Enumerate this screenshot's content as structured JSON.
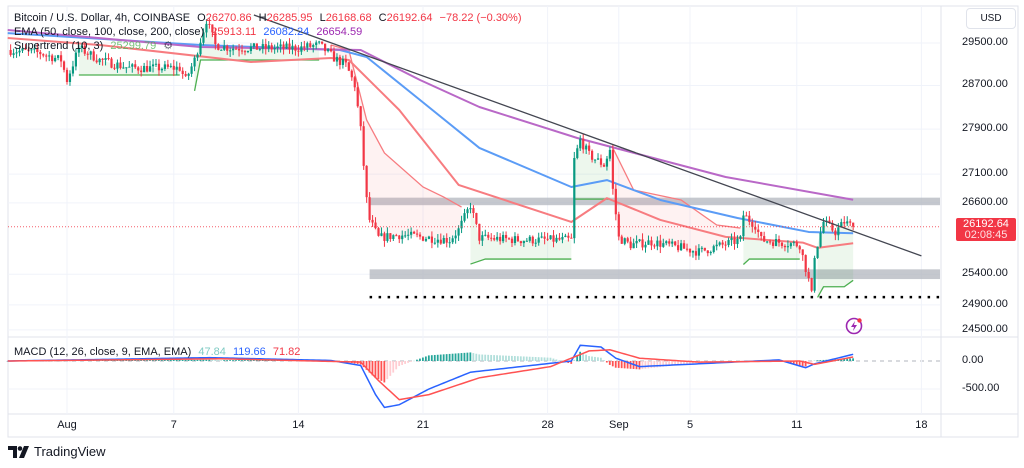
{
  "header": {
    "symbol": "Bitcoin / U.S. Dollar, 4h, COINBASE",
    "open_label": "O",
    "open": "26270.86",
    "high_label": "H",
    "high": "26285.95",
    "low_label": "L",
    "low": "26168.68",
    "close_label": "C",
    "close": "26192.64",
    "change": "−78.22 (−0.30%)"
  },
  "ema_legend": {
    "label": "EMA (50, close, 100, close, 200, close)",
    "v50": "25913.11",
    "v100": "26082.24",
    "v200": "26654.59"
  },
  "supertrend_legend": {
    "label": "Supertrend (10, 3)",
    "value": "25299.79"
  },
  "macd_legend": {
    "label": "MACD (12, 26, close, 9, EMA, EMA)",
    "hist": "47.84",
    "macd": "119.66",
    "signal": "71.82"
  },
  "currency_button": "USD",
  "last_price": {
    "price": "26192.64",
    "countdown": "02:08:45"
  },
  "brand": "TradingView",
  "colors": {
    "up": "#089981",
    "down": "#f23645",
    "ema50": "#f77c80",
    "ema100": "#5b9cf6",
    "ema200": "#b968c7",
    "supertrend_up": "#4caf50",
    "supertrend_down": "#f77c80",
    "macd": "#2962ff",
    "signal": "#ff5252",
    "zone": "#b2b5be",
    "trendline": "#434651"
  },
  "chart_data": [
    {
      "type": "candlestick",
      "title": "Bitcoin / U.S. Dollar, 4h, COINBASE",
      "scale": "log",
      "ylim": [
        24400,
        30000
      ],
      "y_ticks": [
        "29500.00",
        "28700.00",
        "27900.00",
        "27100.00",
        "26600.00",
        "25400.00",
        "24900.00",
        "24500.00"
      ],
      "x_ticks": [
        {
          "label": "Aug",
          "date": "Aug 1 00:00"
        },
        {
          "label": "7",
          "date": "Aug 7 00:00"
        },
        {
          "label": "14",
          "date": "Aug 14 00:00"
        },
        {
          "label": "21",
          "date": "Aug 21 00:00"
        },
        {
          "label": "28",
          "date": "Aug 28 00:00"
        },
        {
          "label": "Sep",
          "date": "Sep 1 00:00"
        },
        {
          "label": "5",
          "date": "Sep 5 00:00"
        },
        {
          "label": "11",
          "date": "Sep 11 00:00"
        },
        {
          "label": "18",
          "date": "Sep 18 00:00"
        }
      ],
      "grid": true,
      "close_path": [
        [
          "Jul 28 16:00",
          29367
        ],
        [
          "Jul 30 12:00",
          29310
        ],
        [
          "Jul 31 16:00",
          29177
        ],
        [
          "Aug 1 00:00",
          28802
        ],
        [
          "Aug 1 16:00",
          29405
        ],
        [
          "Aug 2 20:00",
          29177
        ],
        [
          "Aug 4 12:00",
          29027
        ],
        [
          "Aug 7 08:00",
          29027
        ],
        [
          "Aug 7 16:00",
          28802
        ],
        [
          "Aug 8 04:00",
          29177
        ],
        [
          "Aug 8 20:00",
          29943
        ],
        [
          "Aug 9 08:00",
          29462
        ],
        [
          "Aug 10 04:00",
          29405
        ],
        [
          "Aug 14 00:00",
          29405
        ],
        [
          "Aug 15 04:00",
          29462
        ],
        [
          "Aug 16 00:00",
          29215
        ],
        [
          "Aug 16 16:00",
          29083
        ],
        [
          "Aug 17 04:00",
          28709
        ],
        [
          "Aug 17 12:00",
          27885
        ],
        [
          "Aug 17 20:00",
          26650
        ],
        [
          "Aug 18 00:00",
          26308
        ],
        [
          "Aug 18 12:00",
          26004
        ],
        [
          "Aug 19 16:00",
          26054
        ],
        [
          "Aug 22 12:00",
          25970
        ],
        [
          "Aug 23 00:00",
          26137
        ],
        [
          "Aug 23 16:00",
          26564
        ],
        [
          "Aug 24 04:00",
          26004
        ],
        [
          "Aug 26 12:00",
          25970
        ],
        [
          "Aug 29 08:00",
          25970
        ],
        [
          "Aug 29 12:00",
          27350
        ],
        [
          "Aug 29 20:00",
          27705
        ],
        [
          "Aug 30 08:00",
          27438
        ],
        [
          "Aug 31 04:00",
          27261
        ],
        [
          "Aug 31 12:00",
          27527
        ],
        [
          "Aug 31 16:00",
          26823
        ],
        [
          "Sep 1 00:00",
          26004
        ],
        [
          "Sep 1 16:00",
          25887
        ],
        [
          "Sep 2 20:00",
          25937
        ],
        [
          "Sep 4 12:00",
          25837
        ],
        [
          "Sep 5 12:00",
          25770
        ],
        [
          "Sep 7 20:00",
          25970
        ],
        [
          "Sep 8 00:00",
          26393
        ],
        [
          "Sep 8 16:00",
          26221
        ],
        [
          "Sep 9 00:00",
          25970
        ],
        [
          "Sep 11 04:00",
          25887
        ],
        [
          "Sep 11 16:00",
          25308
        ],
        [
          "Sep 11 20:00",
          25064
        ],
        [
          "Sep 12 00:00",
          25720
        ],
        [
          "Sep 12 12:00",
          26273
        ],
        [
          "Sep 13 04:00",
          26104
        ],
        [
          "Sep 13 16:00",
          26273
        ],
        [
          "Sep 14 04:00",
          26192.64
        ]
      ],
      "series": [
        {
          "name": "EMA 50",
          "points": [
            [
              "Jul 28 16:00",
              29596
            ],
            [
              "Aug 2 20:00",
              29462
            ],
            [
              "Aug 11 08:00",
              29140
            ],
            [
              "Aug 15 20:00",
              29215
            ],
            [
              "Aug 16 20:00",
              29177
            ],
            [
              "Aug 19 16:00",
              28248
            ],
            [
              "Aug 23 00:00",
              26911
            ],
            [
              "Aug 29 08:00",
              26273
            ],
            [
              "Aug 31 08:00",
              26682
            ],
            [
              "Sep 3 08:00",
              26308
            ],
            [
              "Sep 7 00:00",
              26021
            ],
            [
              "Sep 11 08:00",
              25925
            ],
            [
              "Sep 12 04:00",
              25837
            ],
            [
              "Sep 14 04:00",
              25913.11
            ]
          ]
        },
        {
          "name": "EMA 100",
          "points": [
            [
              "Jul 28 16:00",
              29690
            ],
            [
              "Aug 8 12:00",
              29462
            ],
            [
              "Aug 16 08:00",
              29367
            ],
            [
              "Aug 17 20:00",
              29234
            ],
            [
              "Aug 20 20:00",
              28432
            ],
            [
              "Aug 24 04:00",
              27563
            ],
            [
              "Aug 29 08:00",
              26875
            ],
            [
              "Aug 31 08:00",
              26995
            ],
            [
              "Sep 3 08:00",
              26650
            ],
            [
              "Sep 7 16:00",
              26341
            ],
            [
              "Sep 11 16:00",
              26104
            ],
            [
              "Sep 14 04:00",
              26082.24
            ]
          ]
        },
        {
          "name": "EMA 200",
          "points": [
            [
              "Jul 28 16:00",
              29749
            ],
            [
              "Aug 8 12:00",
              29424
            ],
            [
              "Aug 17 12:00",
              29367
            ],
            [
              "Aug 20 20:00",
              28802
            ],
            [
              "Aug 24 04:00",
              28303
            ],
            [
              "Aug 29 16:00",
              27741
            ],
            [
              "Sep 7 00:00",
              27049
            ],
            [
              "Sep 14 04:00",
              26654.59
            ]
          ]
        }
      ],
      "supertrend": [
        {
          "trend": "up",
          "points": [
            [
              "Aug 1 16:00",
              28895
            ],
            [
              "Aug 7 08:00",
              28895
            ]
          ]
        },
        {
          "trend": "up",
          "points": [
            [
              "Aug 8 04:00",
              28600
            ],
            [
              "Aug 8 12:00",
              29177
            ],
            [
              "Aug 15 04:00",
              29177
            ]
          ]
        },
        {
          "trend": "down",
          "points": [
            [
              "Aug 15 20:00",
              29462
            ],
            [
              "Aug 16 20:00",
              29367
            ],
            [
              "Aug 17 20:00",
              28066
            ],
            [
              "Aug 18 20:00",
              27473
            ],
            [
              "Aug 21 00:00",
              26875
            ],
            [
              "Aug 22 04:00",
              26700
            ],
            [
              "Aug 23 04:00",
              26528
            ]
          ]
        },
        {
          "trend": "up",
          "points": [
            [
              "Aug 23 16:00",
              25567
            ],
            [
              "Aug 24 12:00",
              25650
            ],
            [
              "Aug 29 08:00",
              25650
            ]
          ]
        },
        {
          "trend": "up",
          "points": [
            [
              "Aug 29 12:00",
              26665
            ],
            [
              "Aug 31 12:00",
              26665
            ]
          ]
        },
        {
          "trend": "down",
          "points": [
            [
              "Aug 31 16:00",
              27560
            ],
            [
              "Sep 1 20:00",
              26823
            ],
            [
              "Sep 4 12:00",
              26650
            ],
            [
              "Sep 6 12:00",
              26221
            ],
            [
              "Sep 7 20:00",
              26170
            ]
          ]
        },
        {
          "trend": "up",
          "points": [
            [
              "Sep 8 00:00",
              25560
            ],
            [
              "Sep 8 08:00",
              25650
            ],
            [
              "Sep 11 04:00",
              25650
            ]
          ]
        },
        {
          "trend": "up",
          "points": [
            [
              "Sep 12 04:00",
              25020
            ],
            [
              "Sep 12 12:00",
              25194
            ],
            [
              "Sep 13 16:00",
              25194
            ],
            [
              "Sep 14 04:00",
              25299.79
            ]
          ]
        }
      ],
      "zones": [
        {
          "from": 26560,
          "to": 26690,
          "start": "Aug 18 00:00"
        },
        {
          "from": 25320,
          "to": 25480,
          "start": "Aug 18 00:00"
        }
      ],
      "support_dotted": {
        "price": 25026,
        "start": "Aug 18 00:00"
      },
      "trendline": [
        [
          "Aug 11 12:00",
          30040
        ],
        [
          "Sep 18 00:00",
          25703
        ]
      ],
      "last_price": 26192.64
    },
    {
      "type": "line",
      "title": "MACD (12, 26, close, 9, EMA, EMA)",
      "y_ticks": [
        "0.00",
        "-500.00"
      ],
      "series": [
        {
          "name": "MACD",
          "points": [
            [
              "Jul 28 16:00",
              0
            ],
            [
              "Aug 9 00:00",
              60
            ],
            [
              "Aug 15 20:00",
              10
            ],
            [
              "Aug 17 12:00",
              -80
            ],
            [
              "Aug 18 08:00",
              -600
            ],
            [
              "Aug 18 20:00",
              -830
            ],
            [
              "Aug 19 16:00",
              -780
            ],
            [
              "Aug 21 08:00",
              -500
            ],
            [
              "Aug 23 16:00",
              -200
            ],
            [
              "Aug 26 12:00",
              -100
            ],
            [
              "Aug 29 08:00",
              0
            ],
            [
              "Aug 29 20:00",
              280
            ],
            [
              "Aug 31 00:00",
              250
            ],
            [
              "Aug 31 20:00",
              50
            ],
            [
              "Sep 2 04:00",
              -100
            ],
            [
              "Sep 5 12:00",
              -50
            ],
            [
              "Sep 10 00:00",
              20
            ],
            [
              "Sep 11 12:00",
              -120
            ],
            [
              "Sep 12 00:00",
              -50
            ],
            [
              "Sep 14 04:00",
              119.66
            ]
          ]
        },
        {
          "name": "Signal",
          "points": [
            [
              "Jul 28 16:00",
              0
            ],
            [
              "Aug 9 16:00",
              40
            ],
            [
              "Aug 17 12:00",
              -20
            ],
            [
              "Aug 18 12:00",
              -350
            ],
            [
              "Aug 19 16:00",
              -690
            ],
            [
              "Aug 21 08:00",
              -600
            ],
            [
              "Aug 24 04:00",
              -300
            ],
            [
              "Aug 28 04:00",
              -100
            ],
            [
              "Aug 30 08:00",
              180
            ],
            [
              "Aug 31 12:00",
              200
            ],
            [
              "Sep 2 04:00",
              50
            ],
            [
              "Sep 5 12:00",
              -20
            ],
            [
              "Sep 11 04:00",
              0
            ],
            [
              "Sep 12 00:00",
              -60
            ],
            [
              "Sep 14 04:00",
              71.82
            ]
          ]
        }
      ],
      "histogram": "MACD - Signal"
    }
  ]
}
